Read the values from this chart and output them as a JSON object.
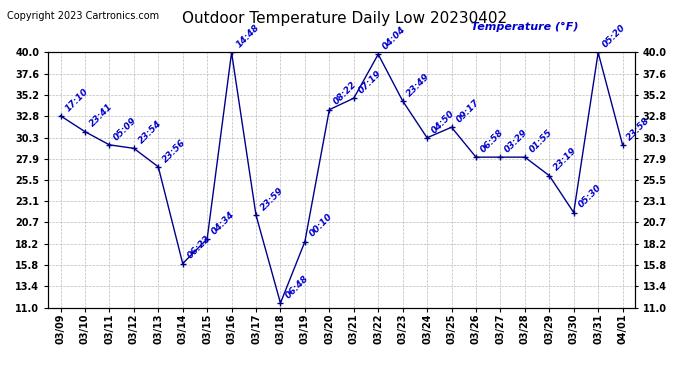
{
  "title": "Outdoor Temperature Daily Low 20230402",
  "copyright": "Copyright 2023 Cartronics.com",
  "legend_label": "Temperature (°F)",
  "x_labels": [
    "03/09",
    "03/10",
    "03/11",
    "03/12",
    "03/13",
    "03/14",
    "03/15",
    "03/16",
    "03/17",
    "03/18",
    "03/19",
    "03/20",
    "03/21",
    "03/22",
    "03/23",
    "03/24",
    "03/25",
    "03/26",
    "03/27",
    "03/28",
    "03/29",
    "03/30",
    "03/31",
    "04/01"
  ],
  "y_values": [
    32.8,
    31.0,
    29.5,
    29.1,
    27.0,
    16.0,
    18.8,
    40.0,
    21.5,
    11.5,
    18.5,
    33.5,
    34.8,
    39.8,
    34.5,
    30.3,
    31.5,
    28.1,
    28.1,
    28.1,
    26.0,
    21.8,
    40.0,
    29.5
  ],
  "point_labels": [
    "17:10",
    "23:41",
    "05:09",
    "23:54",
    "23:56",
    "06:22",
    "04:34",
    "14:48",
    "23:59",
    "06:48",
    "00:10",
    "08:22",
    "07:19",
    "04:04",
    "23:49",
    "04:50",
    "09:17",
    "06:58",
    "03:29",
    "01:55",
    "23:19",
    "05:30",
    "05:20",
    "23:58"
  ],
  "ylim": [
    11.0,
    40.0
  ],
  "yticks": [
    11.0,
    13.4,
    15.8,
    18.2,
    20.7,
    23.1,
    25.5,
    27.9,
    30.3,
    32.8,
    35.2,
    37.6,
    40.0
  ],
  "line_color": "#00008B",
  "label_color": "#0000CC",
  "grid_color": "#AAAAAA",
  "bg_color": "#FFFFFF",
  "title_fontsize": 11,
  "label_fontsize": 6.5,
  "axis_fontsize": 7,
  "copyright_fontsize": 7
}
